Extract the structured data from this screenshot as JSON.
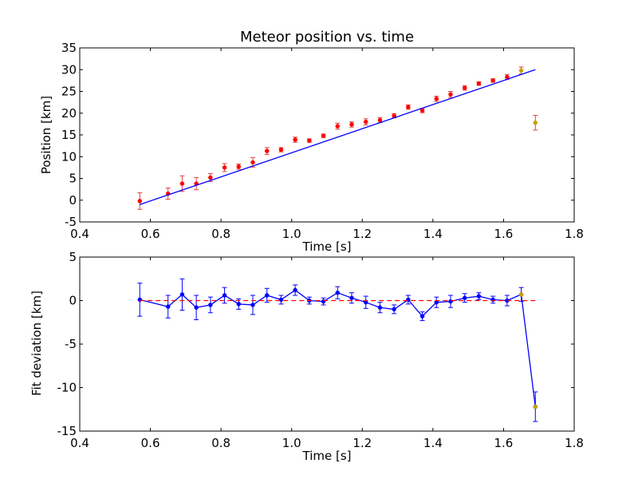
{
  "chart_data": [
    {
      "type": "scatter",
      "title": "Meteor position vs. time",
      "xlabel": "Time [s]",
      "ylabel": "Position [km]",
      "xlim": [
        0.4,
        1.8
      ],
      "ylim": [
        -5,
        35
      ],
      "xticks": [
        "0.4",
        "0.6",
        "0.8",
        "1.0",
        "1.2",
        "1.4",
        "1.6",
        "1.8"
      ],
      "yticks": [
        "-5",
        "0",
        "5",
        "10",
        "15",
        "20",
        "25",
        "30",
        "35"
      ],
      "grid": false,
      "legend": "none",
      "series": [
        {
          "kind": "points-with-errorbars",
          "color": "#ff0000",
          "errorbar_color": "#dd4444",
          "x": [
            0.57,
            0.65,
            0.69,
            0.73,
            0.77,
            0.81,
            0.85,
            0.89,
            0.93,
            0.97,
            1.01,
            1.05,
            1.09,
            1.13,
            1.17,
            1.21,
            1.25,
            1.29,
            1.33,
            1.37,
            1.41,
            1.45,
            1.49,
            1.53,
            1.57,
            1.61
          ],
          "y": [
            -0.2,
            1.5,
            3.8,
            3.8,
            5.2,
            7.5,
            7.7,
            8.7,
            11.3,
            11.6,
            13.9,
            13.7,
            14.8,
            17.0,
            17.4,
            18.0,
            18.4,
            19.4,
            21.4,
            20.6,
            23.3,
            24.3,
            25.8,
            26.8,
            27.5,
            28.3
          ],
          "yerr": [
            1.9,
            1.3,
            1.8,
            1.4,
            0.9,
            0.9,
            0.6,
            1.1,
            0.8,
            0.5,
            0.6,
            0.4,
            0.4,
            0.7,
            0.6,
            0.7,
            0.6,
            0.5,
            0.5,
            0.5,
            0.6,
            0.7,
            0.5,
            0.4,
            0.4,
            0.6
          ]
        },
        {
          "kind": "points-with-errorbars",
          "color": "#c8a000",
          "errorbar_color": "#dd4444",
          "x": [
            1.65,
            1.69
          ],
          "y": [
            29.8,
            17.8
          ],
          "yerr": [
            0.8,
            1.7
          ]
        },
        {
          "kind": "line",
          "color": "#0000ff",
          "x": [
            0.57,
            1.69
          ],
          "y": [
            -1.0,
            30.0
          ]
        }
      ]
    },
    {
      "type": "line",
      "title": "",
      "xlabel": "Time [s]",
      "ylabel": "Fit deviation [km]",
      "xlim": [
        0.4,
        1.8
      ],
      "ylim": [
        -15,
        5
      ],
      "xticks": [
        "0.4",
        "0.6",
        "0.8",
        "1.0",
        "1.2",
        "1.4",
        "1.6",
        "1.8"
      ],
      "yticks": [
        "-15",
        "-10",
        "-5",
        "0",
        "5"
      ],
      "grid": false,
      "legend": "none",
      "series": [
        {
          "kind": "line-with-errorbars",
          "color": "#0000ff",
          "x": [
            0.57,
            0.65,
            0.69,
            0.73,
            0.77,
            0.81,
            0.85,
            0.89,
            0.93,
            0.97,
            1.01,
            1.05,
            1.09,
            1.13,
            1.17,
            1.21,
            1.25,
            1.29,
            1.33,
            1.37,
            1.41,
            1.45,
            1.49,
            1.53,
            1.57,
            1.61,
            1.65,
            1.69
          ],
          "y": [
            0.1,
            -0.7,
            0.7,
            -0.8,
            -0.5,
            0.6,
            -0.4,
            -0.5,
            0.6,
            0.1,
            1.2,
            0.0,
            -0.1,
            0.9,
            0.3,
            -0.2,
            -0.8,
            -1.0,
            0.1,
            -1.8,
            -0.2,
            -0.1,
            0.3,
            0.5,
            0.1,
            0.0,
            0.7,
            -12.2
          ],
          "yerr": [
            1.9,
            1.3,
            1.8,
            1.4,
            0.9,
            0.9,
            0.6,
            1.1,
            0.8,
            0.5,
            0.6,
            0.4,
            0.4,
            0.7,
            0.6,
            0.7,
            0.6,
            0.5,
            0.5,
            0.5,
            0.6,
            0.7,
            0.5,
            0.4,
            0.4,
            0.6,
            0.8,
            1.7
          ]
        },
        {
          "kind": "points",
          "color": "#c8a000",
          "x": [
            1.65,
            1.69
          ],
          "y": [
            0.7,
            -12.2
          ]
        },
        {
          "kind": "dashed-line",
          "color": "#ff0000",
          "x": [
            0.57,
            1.69
          ],
          "y": [
            0,
            0
          ]
        }
      ]
    }
  ]
}
